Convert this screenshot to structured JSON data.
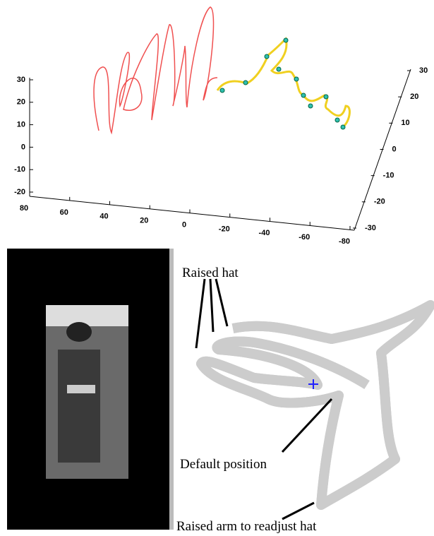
{
  "plot3d": {
    "zticks": [
      30,
      20,
      10,
      0,
      -10,
      -20
    ],
    "xticks": [
      80,
      60,
      40,
      20,
      0,
      -20,
      -40,
      -60,
      -80
    ],
    "yticks": [
      30,
      20,
      10,
      0,
      -10,
      -20,
      -30
    ]
  },
  "annotations": {
    "raised_hat": "Raised hat",
    "default_position": "Default position",
    "raised_arm": "Raised arm to readjust hat"
  }
}
